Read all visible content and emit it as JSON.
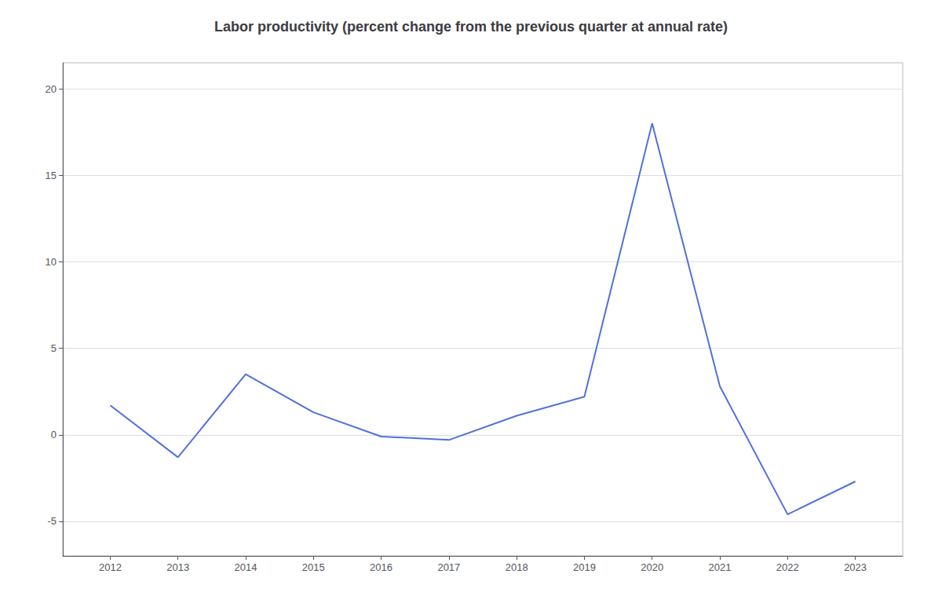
{
  "chart_data": {
    "type": "line",
    "title": "Labor productivity (percent change from the previous quarter at annual rate)",
    "x": [
      2012,
      2013,
      2014,
      2015,
      2016,
      2017,
      2018,
      2019,
      2020,
      2021,
      2022,
      2023
    ],
    "values": [
      1.7,
      -1.3,
      3.5,
      1.3,
      -0.1,
      -0.3,
      1.1,
      2.2,
      18.0,
      2.8,
      -4.6,
      -2.7
    ],
    "xlim": [
      2011.3,
      2023.7
    ],
    "xticks": [
      2012,
      2013,
      2014,
      2015,
      2016,
      2017,
      2018,
      2019,
      2020,
      2021,
      2022,
      2023
    ],
    "ylim": [
      -7.0,
      21.5
    ],
    "yticks": [
      -5,
      0,
      5,
      10,
      15,
      20
    ],
    "grid": "y"
  }
}
